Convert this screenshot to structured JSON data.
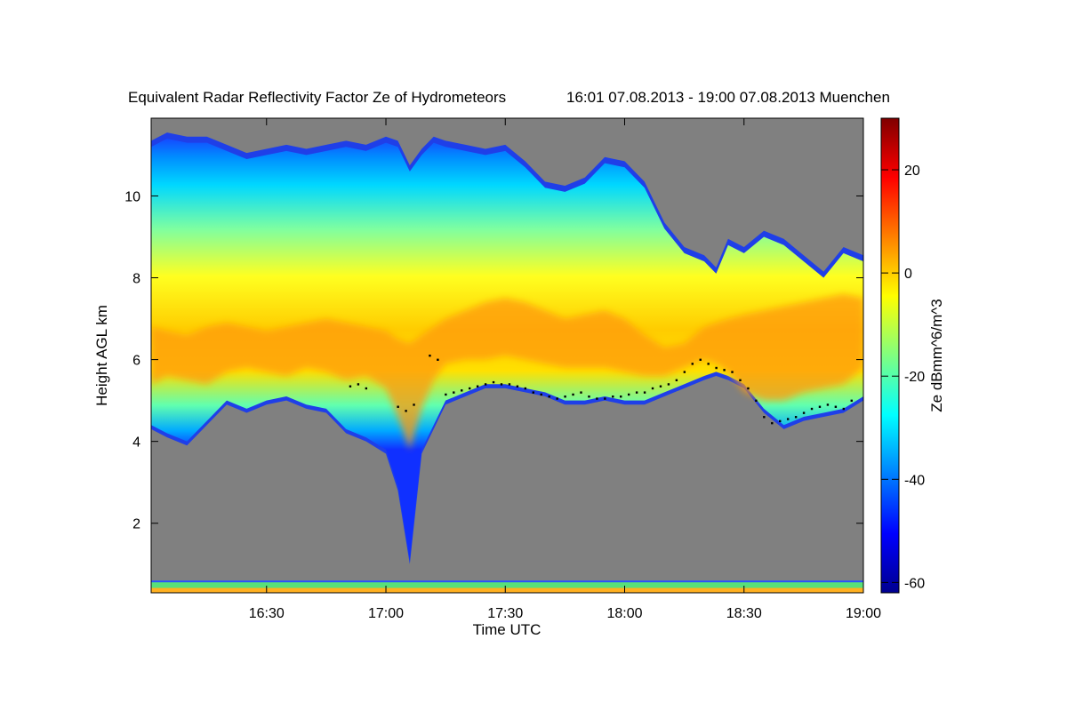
{
  "chart_data": {
    "type": "heatmap",
    "title": "Equivalent Radar Reflectivity Factor Ze of Hydrometeors",
    "subtitle": "16:01 07.08.2013 - 19:00 07.08.2013 Muenchen",
    "xlabel": "Time UTC",
    "ylabel": "Height AGL km",
    "colorbar_label": "Ze dBmm^6/m^3",
    "x_ticks": [
      "16:30",
      "17:00",
      "17:30",
      "18:00",
      "18:30",
      "19:00"
    ],
    "x_tick_minutes": [
      990,
      1020,
      1050,
      1080,
      1110,
      1140
    ],
    "xlim_minutes": [
      961,
      1140
    ],
    "y_ticks": [
      2,
      4,
      6,
      8,
      10
    ],
    "ylim": [
      0.3,
      11.9
    ],
    "colorbar_ticks": [
      20,
      0,
      -20,
      -40,
      -60
    ],
    "colorbar_range": [
      -62,
      30
    ],
    "background_color": "#808080",
    "colormap": [
      "#00008f",
      "#0000ff",
      "#0080ff",
      "#00ffff",
      "#80ff80",
      "#ffff00",
      "#ff8000",
      "#ff0000",
      "#800000"
    ],
    "echo_profile": {
      "time_minutes": [
        961,
        965,
        970,
        975,
        980,
        985,
        990,
        995,
        1000,
        1005,
        1010,
        1015,
        1020,
        1023,
        1026,
        1029,
        1032,
        1035,
        1040,
        1045,
        1050,
        1055,
        1060,
        1065,
        1070,
        1075,
        1080,
        1085,
        1090,
        1095,
        1100,
        1103,
        1106,
        1110,
        1115,
        1120,
        1125,
        1130,
        1135,
        1140
      ],
      "top_km": [
        11.2,
        11.4,
        11.3,
        11.3,
        11.1,
        10.9,
        11.0,
        11.1,
        11.0,
        11.1,
        11.2,
        11.1,
        11.3,
        11.2,
        10.6,
        11.0,
        11.3,
        11.2,
        11.1,
        11.0,
        11.1,
        10.7,
        10.2,
        10.1,
        10.3,
        10.8,
        10.7,
        10.2,
        9.2,
        8.6,
        8.4,
        8.1,
        8.8,
        8.6,
        9.0,
        8.8,
        8.4,
        8.0,
        8.6,
        8.4
      ],
      "base_km": [
        4.4,
        4.2,
        4.0,
        4.5,
        5.0,
        4.8,
        5.0,
        5.1,
        4.9,
        4.8,
        4.3,
        4.1,
        3.8,
        2.9,
        1.1,
        3.8,
        4.4,
        5.0,
        5.2,
        5.4,
        5.4,
        5.3,
        5.2,
        5.0,
        5.0,
        5.1,
        5.0,
        5.0,
        5.2,
        5.4,
        5.6,
        5.7,
        5.6,
        5.4,
        4.8,
        4.4,
        4.6,
        4.7,
        4.8,
        5.1
      ],
      "core_top_km": [
        6.8,
        6.7,
        6.6,
        6.8,
        6.9,
        6.8,
        6.7,
        6.8,
        6.9,
        7.0,
        6.9,
        6.8,
        6.7,
        6.5,
        6.4,
        6.6,
        6.8,
        7.0,
        7.2,
        7.4,
        7.5,
        7.4,
        7.2,
        7.0,
        7.1,
        7.2,
        7.0,
        6.6,
        6.3,
        6.4,
        6.8,
        6.9,
        7.0,
        7.1,
        7.2,
        7.3,
        7.4,
        7.5,
        7.6,
        7.5
      ],
      "core_base_km": [
        5.4,
        5.6,
        5.5,
        5.4,
        5.7,
        5.8,
        5.7,
        5.6,
        5.8,
        5.7,
        5.5,
        5.6,
        5.3,
        4.6,
        3.8,
        4.8,
        5.5,
        5.9,
        6.0,
        6.0,
        6.1,
        6.0,
        5.9,
        5.8,
        5.8,
        5.8,
        5.7,
        5.6,
        5.6,
        5.8,
        6.0,
        5.9,
        5.7,
        5.2,
        5.0,
        5.0,
        5.2,
        5.3,
        5.4,
        5.8
      ]
    },
    "melting_layer_markers": {
      "time_minutes": [
        1011,
        1013,
        1015,
        1023,
        1025,
        1027,
        1031,
        1033,
        1035,
        1037,
        1039,
        1041,
        1043,
        1045,
        1047,
        1049,
        1051,
        1053,
        1055,
        1057,
        1059,
        1061,
        1063,
        1065,
        1067,
        1069,
        1071,
        1073,
        1075,
        1077,
        1079,
        1081,
        1083,
        1085,
        1087,
        1089,
        1091,
        1093,
        1095,
        1097,
        1099,
        1101,
        1103,
        1105,
        1107,
        1109,
        1111,
        1113,
        1115,
        1117,
        1119,
        1121,
        1123,
        1125,
        1127,
        1129,
        1131,
        1133,
        1135,
        1137
      ],
      "height_km": [
        5.35,
        5.4,
        5.3,
        4.85,
        4.75,
        4.9,
        6.1,
        6.0,
        5.15,
        5.2,
        5.25,
        5.3,
        5.35,
        5.4,
        5.45,
        5.4,
        5.4,
        5.35,
        5.3,
        5.2,
        5.15,
        5.1,
        5.05,
        5.1,
        5.15,
        5.2,
        5.1,
        5.05,
        5.05,
        5.1,
        5.1,
        5.15,
        5.2,
        5.2,
        5.3,
        5.35,
        5.4,
        5.5,
        5.7,
        5.9,
        6.0,
        5.9,
        5.8,
        5.75,
        5.7,
        5.5,
        5.3,
        5.0,
        4.6,
        4.45,
        4.5,
        4.55,
        4.6,
        4.7,
        4.8,
        4.85,
        4.9,
        4.85,
        4.8,
        5.0
      ]
    },
    "ground_clutter": {
      "top_km": 0.6,
      "base_km": 0.3
    }
  }
}
